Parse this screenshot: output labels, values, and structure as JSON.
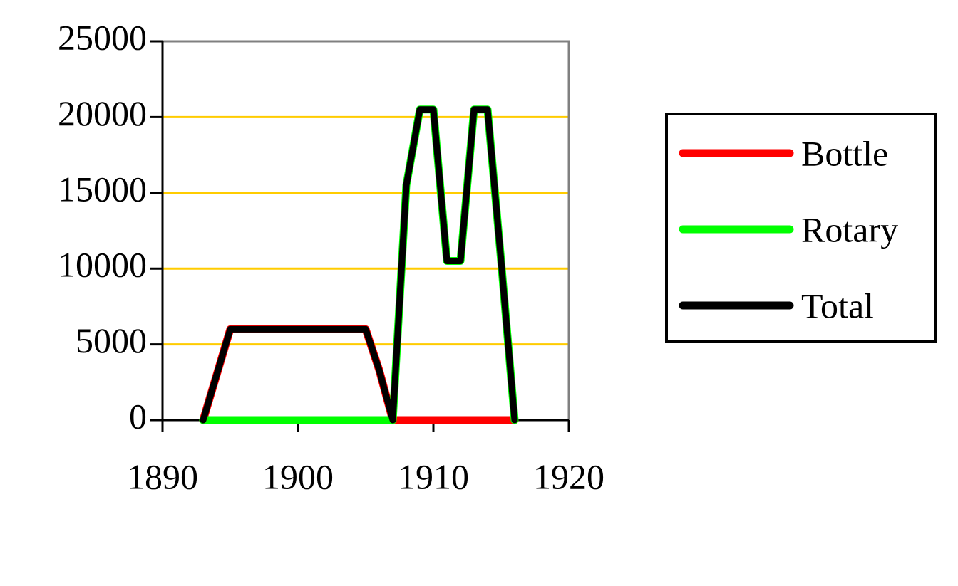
{
  "chart_data": {
    "type": "line",
    "x": [
      1893,
      1894,
      1895,
      1896,
      1897,
      1898,
      1899,
      1900,
      1901,
      1902,
      1903,
      1904,
      1905,
      1906,
      1907,
      1908,
      1909,
      1910,
      1911,
      1912,
      1913,
      1914,
      1915,
      1916
    ],
    "series": [
      {
        "name": "Bottle",
        "color": "#ff0000",
        "values": [
          0,
          3000,
          6000,
          6000,
          6000,
          6000,
          6000,
          6000,
          6000,
          6000,
          6000,
          6000,
          6000,
          3300,
          0,
          0,
          0,
          0,
          0,
          0,
          0,
          0,
          0,
          0
        ]
      },
      {
        "name": "Rotary",
        "color": "#00ff00",
        "values": [
          0,
          0,
          0,
          0,
          0,
          0,
          0,
          0,
          0,
          0,
          0,
          0,
          0,
          0,
          0,
          15500,
          20500,
          20500,
          10500,
          10500,
          20500,
          20500,
          10500,
          0
        ]
      },
      {
        "name": "Total",
        "color": "#000000",
        "values": [
          0,
          3000,
          6000,
          6000,
          6000,
          6000,
          6000,
          6000,
          6000,
          6000,
          6000,
          6000,
          6000,
          3300,
          0,
          15500,
          20500,
          20500,
          10500,
          10500,
          20500,
          20500,
          10500,
          0
        ]
      }
    ],
    "xlim": [
      1890,
      1920
    ],
    "xticks": [
      1890,
      1900,
      1910,
      1920
    ],
    "ylim": [
      0,
      25000
    ],
    "yticks": [
      0,
      5000,
      10000,
      15000,
      20000,
      25000
    ],
    "grid": true,
    "grid_color": "#ffcc00",
    "legend": "right"
  }
}
